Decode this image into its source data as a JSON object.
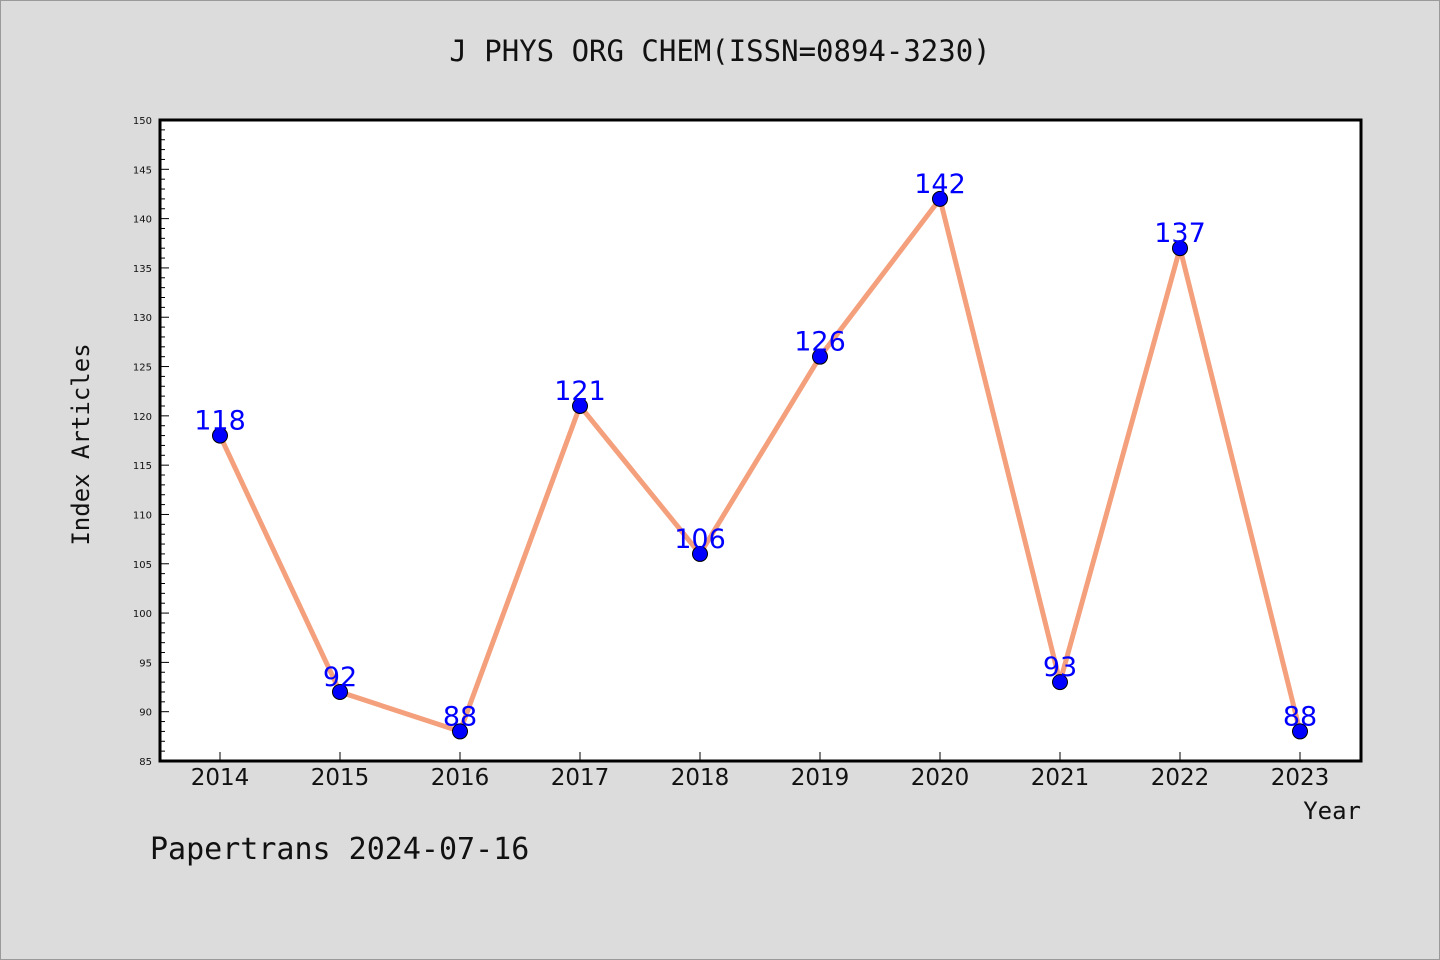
{
  "title": "J PHYS ORG CHEM(ISSN=0894-3230)",
  "footer": "Papertrans 2024-07-16",
  "colors": {
    "background": "#dcdcdc",
    "plot_background": "#ffffff",
    "line": "#f4a07c",
    "marker": "#0000ff",
    "data_label": "#0000ff"
  },
  "chart_data": {
    "type": "line",
    "xlabel": "Year",
    "ylabel": "Index Articles",
    "categories": [
      "2014",
      "2015",
      "2016",
      "2017",
      "2018",
      "2019",
      "2020",
      "2021",
      "2022",
      "2023"
    ],
    "values": [
      118,
      92,
      88,
      121,
      106,
      126,
      142,
      93,
      137,
      88
    ],
    "ylim": [
      85,
      150
    ],
    "yticks": [
      85,
      90,
      95,
      100,
      105,
      110,
      115,
      120,
      125,
      130,
      135,
      140,
      145,
      150
    ],
    "grid": false,
    "data_labels": true
  }
}
